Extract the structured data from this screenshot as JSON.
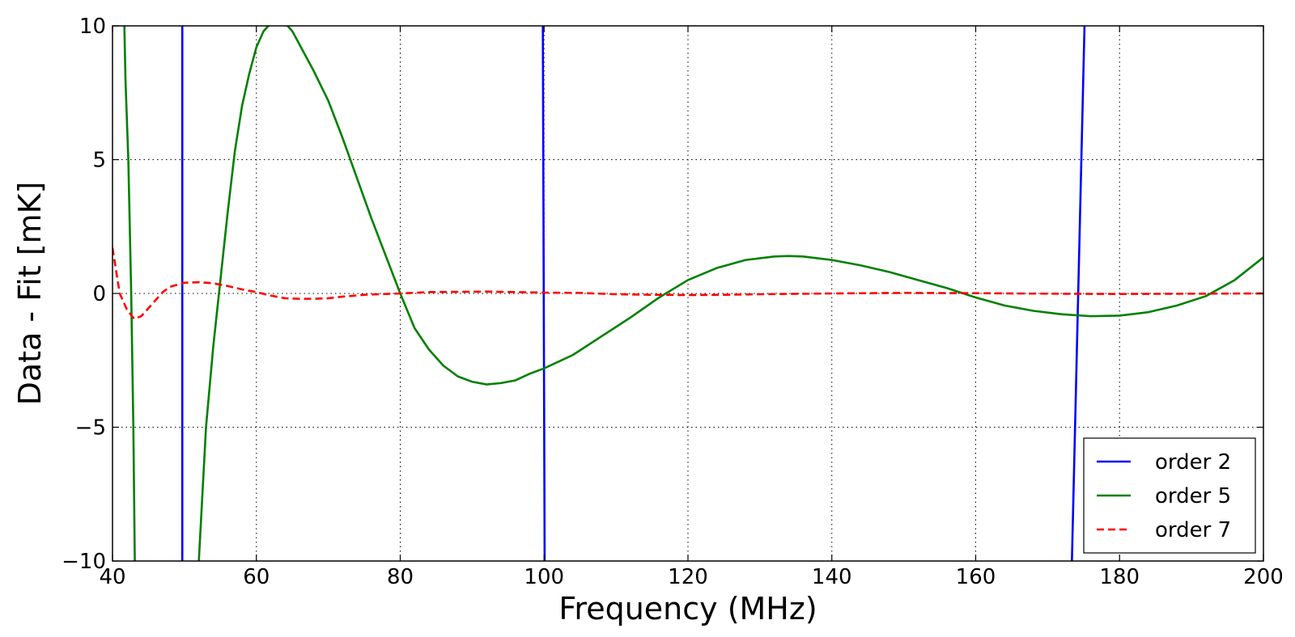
{
  "chart_data": {
    "type": "line",
    "title": "",
    "xlabel": "Frequency (MHz)",
    "ylabel": "Data - Fit [mK]",
    "xlim": [
      40,
      200
    ],
    "ylim": [
      -10,
      10
    ],
    "xticks": [
      40,
      60,
      80,
      100,
      120,
      140,
      160,
      180,
      200
    ],
    "xtick_labels": [
      "40",
      "60",
      "80",
      "100",
      "120",
      "140",
      "160",
      "180",
      "200"
    ],
    "yticks": [
      -10,
      -5,
      0,
      5,
      10
    ],
    "ytick_labels": [
      "−10",
      "−5",
      "0",
      "5",
      "10"
    ],
    "grid": true,
    "legend_position": "lower-right",
    "series": [
      {
        "name": "order 2",
        "color": "#0000ff",
        "dash": "solid",
        "segments": [
          [
            [
              49.7,
              12
            ],
            [
              49.7,
              -12
            ]
          ],
          [
            [
              99.8,
              12
            ],
            [
              100.1,
              -12
            ]
          ],
          [
            [
              173.2,
              -12
            ],
            [
              175.3,
              12
            ]
          ]
        ]
      },
      {
        "name": "order 5",
        "color": "#008000",
        "dash": "solid",
        "segments": [
          [
            [
              41.5,
              12
            ],
            [
              41.8,
              8
            ],
            [
              42.2,
              5
            ],
            [
              42.6,
              0
            ],
            [
              42.9,
              -5
            ],
            [
              43.1,
              -10
            ],
            [
              43.3,
              -12
            ]
          ],
          [
            [
              51.7,
              -12
            ],
            [
              52,
              -10
            ],
            [
              53,
              -5
            ],
            [
              54,
              -2
            ],
            [
              55,
              0.5
            ],
            [
              56,
              3
            ],
            [
              57,
              5.3
            ],
            [
              58,
              7
            ],
            [
              59,
              8.2
            ],
            [
              60,
              9.2
            ],
            [
              61,
              9.8
            ],
            [
              62,
              10.1
            ],
            [
              63,
              10.2
            ],
            [
              64,
              10.1
            ],
            [
              65,
              9.8
            ],
            [
              66,
              9.3
            ],
            [
              68,
              8.3
            ],
            [
              70,
              7.2
            ],
            [
              72,
              5.8
            ],
            [
              74,
              4.3
            ],
            [
              76,
              2.8
            ],
            [
              78,
              1.4
            ],
            [
              80,
              0
            ],
            [
              82,
              -1.3
            ],
            [
              84,
              -2.1
            ],
            [
              86,
              -2.7
            ],
            [
              88,
              -3.1
            ],
            [
              90,
              -3.3
            ],
            [
              92,
              -3.4
            ],
            [
              94,
              -3.35
            ],
            [
              96,
              -3.25
            ],
            [
              98,
              -3.0
            ],
            [
              100,
              -2.8
            ],
            [
              104,
              -2.3
            ],
            [
              108,
              -1.6
            ],
            [
              112,
              -0.9
            ],
            [
              116,
              -0.15
            ],
            [
              120,
              0.5
            ],
            [
              124,
              0.95
            ],
            [
              128,
              1.25
            ],
            [
              132,
              1.38
            ],
            [
              134,
              1.4
            ],
            [
              136,
              1.38
            ],
            [
              140,
              1.25
            ],
            [
              144,
              1.05
            ],
            [
              148,
              0.8
            ],
            [
              152,
              0.5
            ],
            [
              156,
              0.2
            ],
            [
              160,
              -0.15
            ],
            [
              164,
              -0.45
            ],
            [
              168,
              -0.65
            ],
            [
              172,
              -0.78
            ],
            [
              176,
              -0.85
            ],
            [
              180,
              -0.83
            ],
            [
              184,
              -0.7
            ],
            [
              188,
              -0.45
            ],
            [
              192,
              -0.1
            ],
            [
              196,
              0.5
            ],
            [
              200,
              1.35
            ]
          ]
        ]
      },
      {
        "name": "order 7",
        "color": "#ff0000",
        "dash": "dashed",
        "segments": [
          [
            [
              40,
              1.7
            ],
            [
              41,
              0
            ],
            [
              42,
              -0.6
            ],
            [
              43,
              -0.95
            ],
            [
              44,
              -0.85
            ],
            [
              45,
              -0.55
            ],
            [
              46,
              -0.25
            ],
            [
              47,
              0.05
            ],
            [
              48,
              0.25
            ],
            [
              50,
              0.4
            ],
            [
              52,
              0.42
            ],
            [
              54,
              0.38
            ],
            [
              56,
              0.28
            ],
            [
              58,
              0.15
            ],
            [
              60,
              0.05
            ],
            [
              62,
              -0.08
            ],
            [
              64,
              -0.18
            ],
            [
              66,
              -0.2
            ],
            [
              68,
              -0.2
            ],
            [
              70,
              -0.18
            ],
            [
              72,
              -0.12
            ],
            [
              75,
              -0.05
            ],
            [
              80,
              0.0
            ],
            [
              84,
              0.05
            ],
            [
              88,
              0.06
            ],
            [
              92,
              0.07
            ],
            [
              96,
              0.05
            ],
            [
              100,
              0.03
            ],
            [
              105,
              0.02
            ],
            [
              110,
              -0.03
            ],
            [
              115,
              -0.05
            ],
            [
              120,
              -0.06
            ],
            [
              125,
              -0.05
            ],
            [
              130,
              -0.03
            ],
            [
              140,
              0.0
            ],
            [
              150,
              0.02
            ],
            [
              160,
              0.01
            ],
            [
              170,
              -0.01
            ],
            [
              180,
              -0.02
            ],
            [
              190,
              -0.01
            ],
            [
              200,
              0.0
            ]
          ]
        ]
      }
    ]
  }
}
